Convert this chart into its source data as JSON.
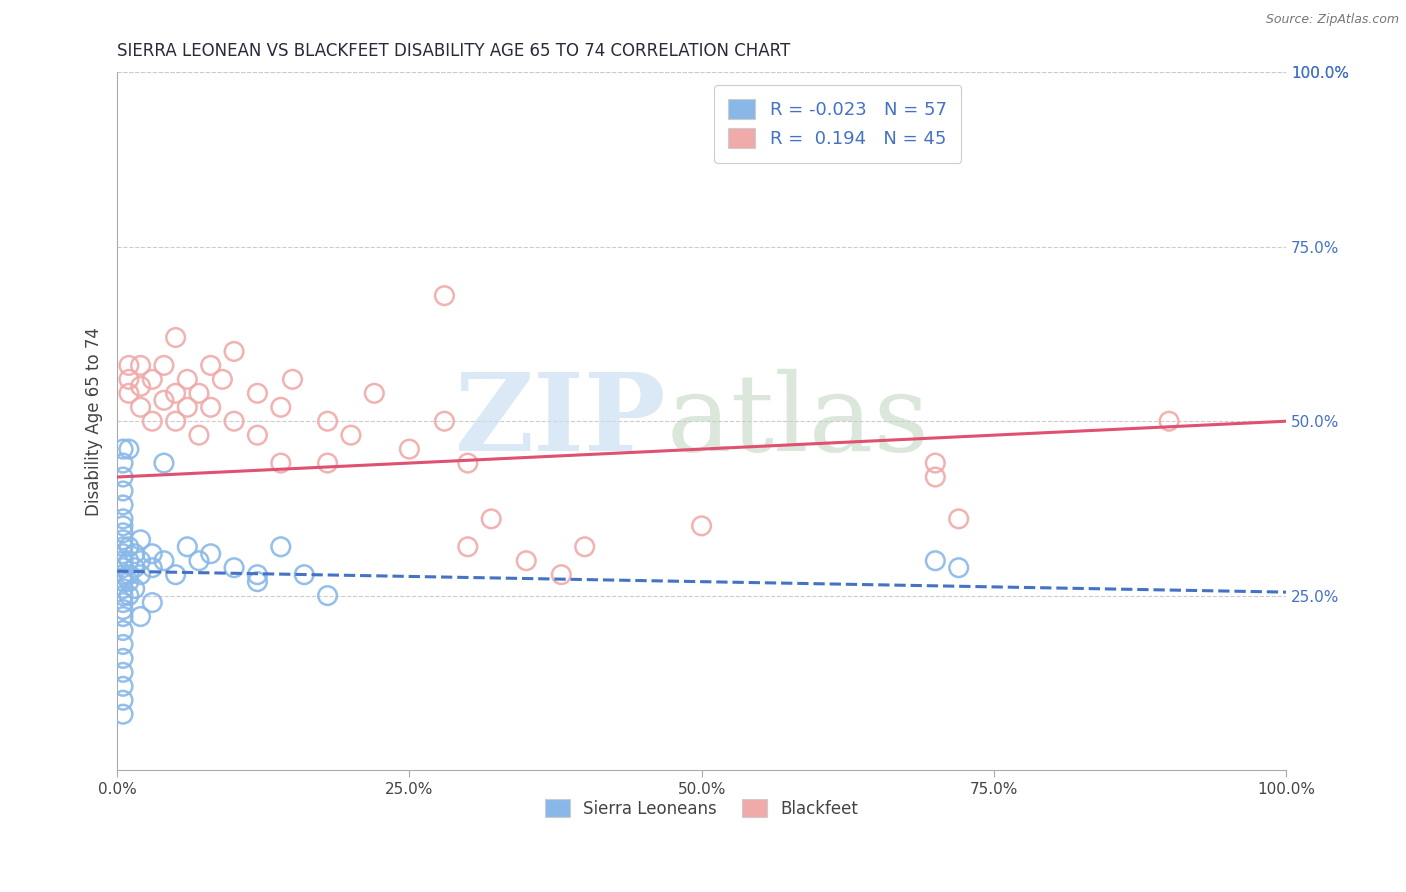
{
  "title": "SIERRA LEONEAN VS BLACKFEET DISABILITY AGE 65 TO 74 CORRELATION CHART",
  "source": "Source: ZipAtlas.com",
  "ylabel": "Disability Age 65 to 74",
  "xlabel": "",
  "xlim": [
    0.0,
    1.0
  ],
  "ylim": [
    0.0,
    1.0
  ],
  "xtick_labels": [
    "0.0%",
    "25.0%",
    "50.0%",
    "75.0%",
    "100.0%"
  ],
  "xtick_vals": [
    0.0,
    0.25,
    0.5,
    0.75,
    1.0
  ],
  "ytick_labels": [
    "25.0%",
    "50.0%",
    "75.0%",
    "100.0%"
  ],
  "ytick_vals": [
    0.25,
    0.5,
    0.75,
    1.0
  ],
  "blue_color": "#89B8E8",
  "pink_color": "#F0AAAA",
  "blue_line_color": "#4472C4",
  "pink_line_color": "#E05070",
  "grid_color": "#CCCCCC",
  "blue_scatter": [
    [
      0.005,
      0.24
    ],
    [
      0.005,
      0.26
    ],
    [
      0.005,
      0.28
    ],
    [
      0.005,
      0.3
    ],
    [
      0.005,
      0.32
    ],
    [
      0.005,
      0.34
    ],
    [
      0.005,
      0.22
    ],
    [
      0.005,
      0.2
    ],
    [
      0.005,
      0.27
    ],
    [
      0.005,
      0.29
    ],
    [
      0.005,
      0.31
    ],
    [
      0.005,
      0.25
    ],
    [
      0.005,
      0.23
    ],
    [
      0.005,
      0.33
    ],
    [
      0.005,
      0.35
    ],
    [
      0.005,
      0.18
    ],
    [
      0.005,
      0.16
    ],
    [
      0.005,
      0.14
    ],
    [
      0.005,
      0.36
    ],
    [
      0.005,
      0.38
    ],
    [
      0.005,
      0.4
    ],
    [
      0.01,
      0.27
    ],
    [
      0.01,
      0.3
    ],
    [
      0.01,
      0.32
    ],
    [
      0.01,
      0.25
    ],
    [
      0.01,
      0.28
    ],
    [
      0.015,
      0.29
    ],
    [
      0.015,
      0.31
    ],
    [
      0.015,
      0.26
    ],
    [
      0.02,
      0.3
    ],
    [
      0.02,
      0.28
    ],
    [
      0.02,
      0.33
    ],
    [
      0.03,
      0.29
    ],
    [
      0.03,
      0.31
    ],
    [
      0.04,
      0.3
    ],
    [
      0.05,
      0.28
    ],
    [
      0.06,
      0.32
    ],
    [
      0.07,
      0.3
    ],
    [
      0.08,
      0.31
    ],
    [
      0.1,
      0.29
    ],
    [
      0.12,
      0.27
    ],
    [
      0.04,
      0.44
    ],
    [
      0.01,
      0.46
    ],
    [
      0.005,
      0.12
    ],
    [
      0.005,
      0.1
    ],
    [
      0.005,
      0.08
    ],
    [
      0.7,
      0.3
    ],
    [
      0.72,
      0.29
    ],
    [
      0.12,
      0.28
    ],
    [
      0.14,
      0.32
    ],
    [
      0.16,
      0.28
    ],
    [
      0.18,
      0.25
    ],
    [
      0.005,
      0.42
    ],
    [
      0.005,
      0.44
    ],
    [
      0.005,
      0.46
    ],
    [
      0.02,
      0.22
    ],
    [
      0.03,
      0.24
    ]
  ],
  "pink_scatter": [
    [
      0.01,
      0.56
    ],
    [
      0.01,
      0.58
    ],
    [
      0.01,
      0.54
    ],
    [
      0.02,
      0.55
    ],
    [
      0.02,
      0.52
    ],
    [
      0.02,
      0.58
    ],
    [
      0.03,
      0.56
    ],
    [
      0.03,
      0.5
    ],
    [
      0.04,
      0.58
    ],
    [
      0.04,
      0.53
    ],
    [
      0.05,
      0.54
    ],
    [
      0.05,
      0.5
    ],
    [
      0.05,
      0.62
    ],
    [
      0.06,
      0.56
    ],
    [
      0.06,
      0.52
    ],
    [
      0.07,
      0.54
    ],
    [
      0.07,
      0.48
    ],
    [
      0.08,
      0.52
    ],
    [
      0.08,
      0.58
    ],
    [
      0.09,
      0.56
    ],
    [
      0.1,
      0.5
    ],
    [
      0.1,
      0.6
    ],
    [
      0.12,
      0.54
    ],
    [
      0.12,
      0.48
    ],
    [
      0.14,
      0.52
    ],
    [
      0.14,
      0.44
    ],
    [
      0.15,
      0.56
    ],
    [
      0.18,
      0.5
    ],
    [
      0.18,
      0.44
    ],
    [
      0.2,
      0.48
    ],
    [
      0.22,
      0.54
    ],
    [
      0.25,
      0.46
    ],
    [
      0.28,
      0.5
    ],
    [
      0.3,
      0.44
    ],
    [
      0.3,
      0.32
    ],
    [
      0.32,
      0.36
    ],
    [
      0.35,
      0.3
    ],
    [
      0.38,
      0.28
    ],
    [
      0.4,
      0.32
    ],
    [
      0.5,
      0.35
    ],
    [
      0.7,
      0.42
    ],
    [
      0.7,
      0.44
    ],
    [
      0.72,
      0.36
    ],
    [
      0.9,
      0.5
    ],
    [
      0.28,
      0.68
    ]
  ],
  "blue_line_y_start": 0.285,
  "blue_line_y_end": 0.255,
  "pink_line_y_start": 0.42,
  "pink_line_y_end": 0.5
}
